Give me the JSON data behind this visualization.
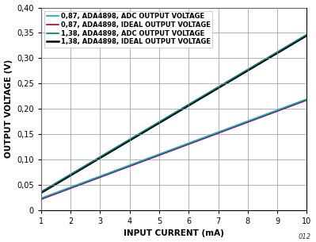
{
  "xlabel": "INPUT CURRENT (mA)",
  "ylabel": "OUTPUT VOLTAGE (V)",
  "xlim": [
    1,
    10
  ],
  "ylim": [
    0,
    0.4
  ],
  "xticks": [
    1,
    2,
    3,
    4,
    5,
    6,
    7,
    8,
    9,
    10
  ],
  "yticks": [
    0,
    0.05,
    0.1,
    0.15,
    0.2,
    0.25,
    0.3,
    0.35,
    0.4
  ],
  "ytick_labels": [
    "0",
    "0,05",
    "0,10",
    "0,15",
    "0,20",
    "0,25",
    "0,30",
    "0,35",
    "0,40"
  ],
  "lines": [
    {
      "label": "0,87, ADA4898, ADC OUTPUT VOLTAGE",
      "color": "#00AACC",
      "linewidth": 1.2,
      "slope": 0.02175,
      "intercept": 0.0018,
      "zorder": 4
    },
    {
      "label": "0,87, ADA4898, IDEAL OUTPUT VOLTAGE",
      "color": "#AA0033",
      "linewidth": 1.2,
      "slope": 0.02175,
      "intercept": -0.0003,
      "zorder": 3
    },
    {
      "label": "1,38, ADA4898, ADC OUTPUT VOLTAGE",
      "color": "#007777",
      "linewidth": 1.2,
      "slope": 0.0345,
      "intercept": 0.0018,
      "zorder": 2
    },
    {
      "label": "1,38, ADA4898, IDEAL OUTPUT VOLTAGE",
      "color": "#000000",
      "linewidth": 1.8,
      "slope": 0.0345,
      "intercept": -0.0003,
      "zorder": 1
    }
  ],
  "legend_fontsize": 6.0,
  "axis_label_fontsize": 7.5,
  "tick_fontsize": 7.0,
  "background_color": "#ffffff",
  "grid_color": "#999999",
  "watermark": "012"
}
